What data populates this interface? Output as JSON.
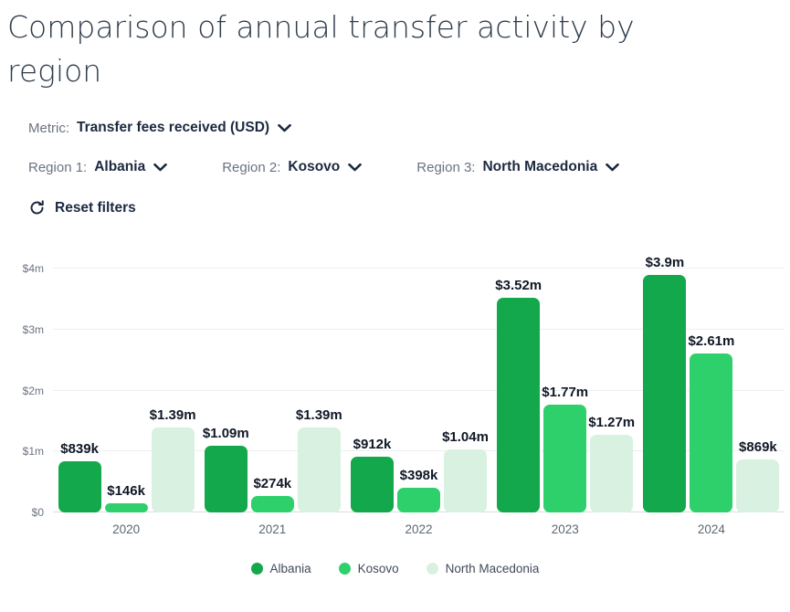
{
  "header": {
    "title": "Comparison of annual transfer activity by region"
  },
  "filters": {
    "metric": {
      "label": "Metric:",
      "value": "Transfer fees received (USD)"
    },
    "regions": [
      {
        "label": "Region 1:",
        "value": "Albania"
      },
      {
        "label": "Region 2:",
        "value": "Kosovo"
      },
      {
        "label": "Region 3:",
        "value": "North Macedonia"
      }
    ],
    "reset_label": "Reset filters"
  },
  "colors": {
    "albania": "#12a84b",
    "kosovo": "#2ed06b",
    "north_macedonia": "#d9f1e0",
    "text_dark": "#1b2940",
    "label_gray": "#6a7380"
  },
  "chart_data": {
    "type": "bar",
    "title": "",
    "xlabel": "",
    "ylabel": "",
    "categories": [
      "2020",
      "2021",
      "2022",
      "2023",
      "2024"
    ],
    "series": [
      {
        "name": "Albania",
        "color": "#12a84b",
        "values": [
          839000,
          1090000,
          912000,
          3520000,
          3900000
        ],
        "labels": [
          "$839k",
          "$1.09m",
          "$912k",
          "$3.52m",
          "$3.9m"
        ]
      },
      {
        "name": "Kosovo",
        "color": "#2ed06b",
        "values": [
          146000,
          274000,
          398000,
          1770000,
          2610000
        ],
        "labels": [
          "$146k",
          "$274k",
          "$398k",
          "$1.77m",
          "$2.61m"
        ]
      },
      {
        "name": "North Macedonia",
        "color": "#d9f1e0",
        "values": [
          1390000,
          1390000,
          1040000,
          1270000,
          869000
        ],
        "labels": [
          "$1.39m",
          "$1.39m",
          "$1.04m",
          "$1.27m",
          "$869k"
        ]
      }
    ],
    "ylim": [
      0,
      4000000
    ],
    "yticks": [
      "$0",
      "$1m",
      "$2m",
      "$3m",
      "$4m"
    ],
    "grid": true,
    "legend_position": "bottom"
  }
}
